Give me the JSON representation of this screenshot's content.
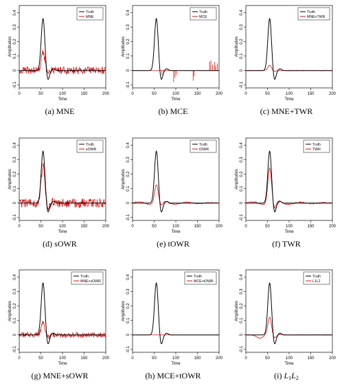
{
  "chart_data": [
    {
      "id": "a",
      "type": "line",
      "caption": "(a) MNE",
      "xlabel": "Time",
      "ylabel": "Amplitudes",
      "xlim": [
        0,
        200
      ],
      "ylim": [
        -0.12,
        0.45
      ],
      "xticks": [
        0,
        50,
        100,
        150,
        200
      ],
      "yticks": [
        -0.1,
        0,
        0.1,
        0.2,
        0.3,
        0.4
      ],
      "legend": [
        "Truth",
        "MNE"
      ],
      "est": {
        "kind": "noise",
        "amp": 0.35,
        "noise": 0.012,
        "seed": 11
      }
    },
    {
      "id": "b",
      "type": "line",
      "caption": "(b) MCE",
      "xlabel": "Time",
      "ylabel": "Amplitudes",
      "xlim": [
        0,
        200
      ],
      "ylim": [
        -0.12,
        0.45
      ],
      "xticks": [
        0,
        50,
        100,
        150,
        200
      ],
      "yticks": [
        -0.1,
        0,
        0.1,
        0.2,
        0.3,
        0.4
      ],
      "legend": [
        "Truth",
        "MCE"
      ],
      "est": {
        "kind": "spikes",
        "spikes": [
          [
            68,
            -0.03
          ],
          [
            72,
            -0.02
          ],
          [
            95,
            -0.08
          ],
          [
            98,
            -0.05
          ],
          [
            101,
            -0.03
          ],
          [
            140,
            -0.07
          ],
          [
            142,
            -0.04
          ],
          [
            178,
            0.06
          ],
          [
            181,
            0.07
          ],
          [
            185,
            0.04
          ],
          [
            190,
            0.06
          ],
          [
            192,
            0.03
          ],
          [
            196,
            0.05
          ]
        ]
      }
    },
    {
      "id": "c",
      "type": "line",
      "caption": "(c) MNE+TWR",
      "xlabel": "Time",
      "ylabel": "Amplitudes",
      "xlim": [
        0,
        200
      ],
      "ylim": [
        -0.12,
        0.45
      ],
      "xticks": [
        0,
        50,
        100,
        150,
        200
      ],
      "yticks": [
        -0.1,
        0,
        0.1,
        0.2,
        0.3,
        0.4
      ],
      "legend": [
        "Truth",
        "MNE+TWR"
      ],
      "est": {
        "kind": "smooth",
        "amp": 0.1,
        "noise": 0.002,
        "seed": 3
      }
    },
    {
      "id": "d",
      "type": "line",
      "caption": "(d) sOWR",
      "xlabel": "Time",
      "ylabel": "Amplitudes",
      "xlim": [
        0,
        200
      ],
      "ylim": [
        -0.12,
        0.45
      ],
      "xticks": [
        0,
        50,
        100,
        150,
        200
      ],
      "yticks": [
        -0.1,
        0,
        0.1,
        0.2,
        0.3,
        0.4
      ],
      "legend": [
        "Truth",
        "sOWR"
      ],
      "est": {
        "kind": "noise",
        "amp": 0.72,
        "noise": 0.014,
        "seed": 7
      }
    },
    {
      "id": "e",
      "type": "line",
      "caption": "(e) tOWR",
      "xlabel": "Time",
      "ylabel": "Amplitudes",
      "xlim": [
        0,
        200
      ],
      "ylim": [
        -0.12,
        0.45
      ],
      "xticks": [
        0,
        50,
        100,
        150,
        200
      ],
      "yticks": [
        -0.1,
        0,
        0.1,
        0.2,
        0.3,
        0.4
      ],
      "legend": [
        "Truth",
        "tOWR"
      ],
      "est": {
        "kind": "wavy",
        "amp": 0.36,
        "noise": 0.006,
        "seed": 5
      }
    },
    {
      "id": "f",
      "type": "line",
      "caption": "(f) TWR",
      "xlabel": "Time",
      "ylabel": "Amplitudes",
      "xlim": [
        0,
        200
      ],
      "ylim": [
        -0.12,
        0.45
      ],
      "xticks": [
        0,
        50,
        100,
        150,
        200
      ],
      "yticks": [
        -0.1,
        0,
        0.1,
        0.2,
        0.3,
        0.4
      ],
      "legend": [
        "Truth",
        "TWR"
      ],
      "est": {
        "kind": "wavy",
        "amp": 0.68,
        "noise": 0.008,
        "seed": 9
      }
    },
    {
      "id": "g",
      "type": "line",
      "caption": "(g) MNE+sOWR",
      "xlabel": "Time",
      "ylabel": "Amplitudes",
      "xlim": [
        0,
        200
      ],
      "ylim": [
        -0.12,
        0.45
      ],
      "xticks": [
        0,
        50,
        100,
        150,
        200
      ],
      "yticks": [
        -0.1,
        0,
        0.1,
        0.2,
        0.3,
        0.4
      ],
      "legend": [
        "Truth",
        "MNE+sOWR"
      ],
      "est": {
        "kind": "noise",
        "amp": 0.26,
        "noise": 0.008,
        "seed": 13
      }
    },
    {
      "id": "h",
      "type": "line",
      "caption": "(h) MCE+tOWR",
      "xlabel": "Time",
      "ylabel": "Amplitudes",
      "xlim": [
        0,
        200
      ],
      "ylim": [
        -0.12,
        0.45
      ],
      "xticks": [
        0,
        50,
        100,
        150,
        200
      ],
      "yticks": [
        -0.1,
        0,
        0.1,
        0.2,
        0.3,
        0.4
      ],
      "legend": [
        "Truth",
        "MCE+tOWR"
      ],
      "est": {
        "kind": "smooth",
        "amp": 0.0,
        "noise": 0.0,
        "seed": 1
      }
    },
    {
      "id": "i",
      "type": "line",
      "caption": "(i) L1L2",
      "caption_main": "(i) ",
      "caption_l1": "L",
      "caption_s1": "1",
      "caption_l2": "L",
      "caption_s2": "2",
      "xlabel": "Time",
      "ylabel": "Amplitudes",
      "xlim": [
        0,
        200
      ],
      "ylim": [
        -0.12,
        0.45
      ],
      "xticks": [
        0,
        50,
        100,
        150,
        200
      ],
      "yticks": [
        -0.1,
        0,
        0.1,
        0.2,
        0.3,
        0.4
      ],
      "legend": [
        "Truth",
        "L1L2"
      ],
      "est": {
        "kind": "l1l2",
        "amp": 0.34,
        "noise": 0.004,
        "seed": 17
      }
    }
  ],
  "colors": {
    "truth": "#000000",
    "estimate": "#dd1111"
  }
}
